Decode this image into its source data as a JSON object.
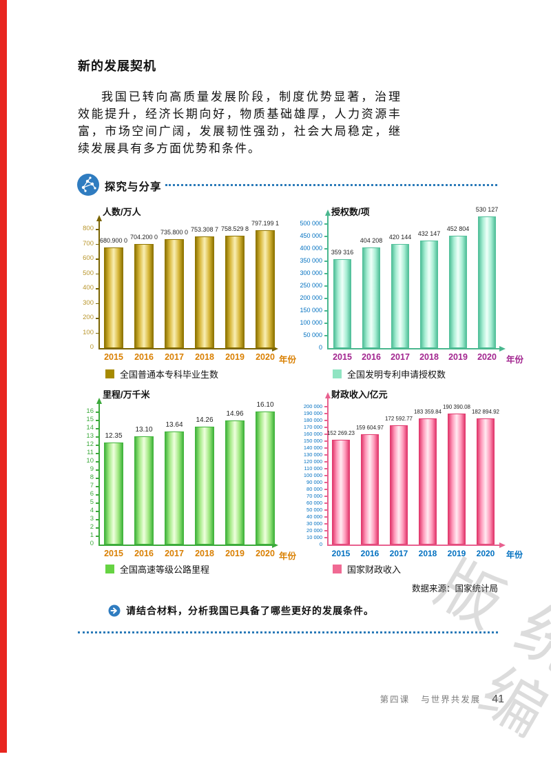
{
  "page": {
    "title": "新的发展契机",
    "paragraph": "我国已转向高质量发展阶段，制度优势显著，治理效能提升，经济长期向好，物质基础雄厚，人力资源丰富，市场空间广阔，发展韧性强劲，社会大局稳定，继续发展具有多方面优势和条件。",
    "section_header": "探究与分享",
    "question": "请结合材料，分析我国已具备了哪些更好的发展条件。",
    "source_note": "数据来源：国家统计局",
    "footer": {
      "lesson": "第四课",
      "lesson_title": "与世界共发展",
      "page_number": "41"
    },
    "watermark": "统编版"
  },
  "chart_data": [
    {
      "type": "bar",
      "ylabel": "人数/万人",
      "xlabel": "年份",
      "categories": [
        "2015",
        "2016",
        "2017",
        "2018",
        "2019",
        "2020"
      ],
      "values": [
        680.9,
        704.2,
        735.8,
        753.3087,
        758.5298,
        797.1991
      ],
      "value_labels": [
        "680.900 0",
        "704.200 0",
        "735.800 0",
        "753.308 7",
        "758.529 8",
        "797.199 1"
      ],
      "ylim": [
        0,
        800
      ],
      "ytick_step": 100,
      "legend": "全国普通本专科毕业生数",
      "colors": {
        "bar_edge": "#8f7500",
        "bar_mid": "#d9b93e",
        "bar_center": "#f9efb4",
        "axis": "#7a6400",
        "ytick": "#b8952a",
        "xtick": "#d97f00",
        "legend_swatch": "#a68a00"
      }
    },
    {
      "type": "bar",
      "ylabel": "授权数/项",
      "xlabel": "年份",
      "categories": [
        "2015",
        "2016",
        "2017",
        "2018",
        "2019",
        "2020"
      ],
      "values": [
        359316,
        404208,
        420144,
        432147,
        452804,
        530127
      ],
      "value_labels": [
        "359 316",
        "404 208",
        "420 144",
        "432 147",
        "452 804",
        "530 127"
      ],
      "ylim": [
        0,
        500000
      ],
      "ytick_step": 50000,
      "legend": "全国发明专利申请授权数",
      "colors": {
        "bar_edge": "#52c09a",
        "bar_mid": "#a9eed4",
        "bar_center": "#f0fff9",
        "axis": "#49b78e",
        "ytick": "#0070c0",
        "xtick": "#a2258f",
        "legend_swatch": "#90e4c2"
      }
    },
    {
      "type": "bar",
      "ylabel": "里程/万千米",
      "xlabel": "年份",
      "categories": [
        "2015",
        "2016",
        "2017",
        "2018",
        "2019",
        "2020"
      ],
      "values": [
        12.35,
        13.1,
        13.64,
        14.26,
        14.96,
        16.1
      ],
      "value_labels": [
        "12.35",
        "13.10",
        "13.64",
        "14.26",
        "14.96",
        "16.10"
      ],
      "ylim": [
        0,
        16
      ],
      "ytick_step": 1,
      "legend": "全国高速等级公路里程",
      "colors": {
        "bar_edge": "#41b43c",
        "bar_mid": "#a4ea86",
        "bar_center": "#efffdf",
        "axis": "#3aa93a",
        "ytick": "#3aa93a",
        "xtick": "#d97f00",
        "legend_swatch": "#66d343"
      }
    },
    {
      "type": "bar",
      "ylabel": "财政收入/亿元",
      "xlabel": "年份",
      "categories": [
        "2015",
        "2016",
        "2017",
        "2018",
        "2019",
        "2020"
      ],
      "values": [
        152269.23,
        159604.97,
        172592.77,
        183359.84,
        190390.08,
        182894.92
      ],
      "value_labels": [
        "152 269.23",
        "159 604.97",
        "172 592.77",
        "183 359.84",
        "190 390.08",
        "182 894.92"
      ],
      "ylim": [
        0,
        200000
      ],
      "ytick_step": 10000,
      "legend": "国家财政收入",
      "colors": {
        "bar_edge": "#e23a6e",
        "bar_mid": "#ff9cbc",
        "bar_center": "#ffeaf1",
        "axis": "#e8608e",
        "ytick": "#0070c0",
        "xtick": "#0070c0",
        "legend_swatch": "#f06a93"
      }
    }
  ]
}
